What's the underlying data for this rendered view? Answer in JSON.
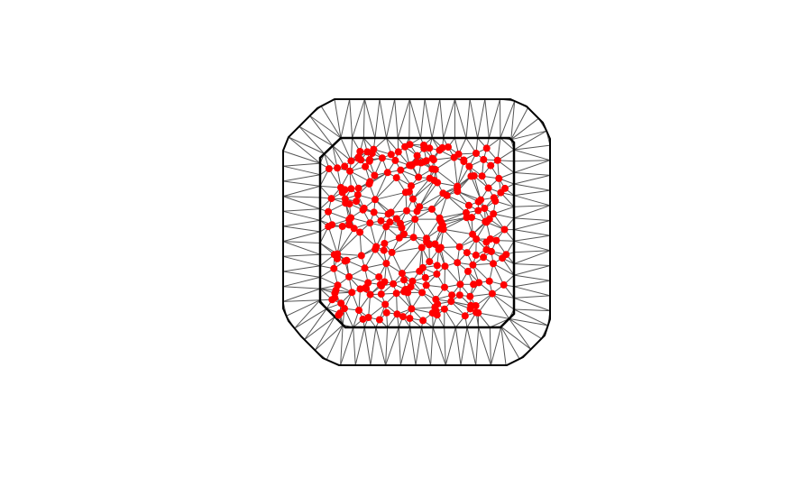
{
  "diagram": {
    "kind": "triangulated mesh with random interior points",
    "background_color": "#ffffff",
    "boundary_color": "#000000",
    "edge_color": "#555555",
    "point_color": "#ff0000",
    "interior_point_count": 250
  }
}
